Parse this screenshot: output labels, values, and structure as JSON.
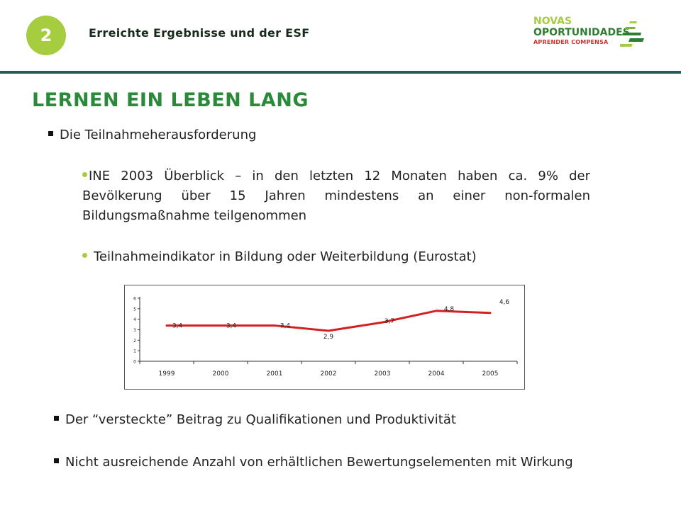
{
  "header": {
    "number": "2",
    "title": "Erreichte Ergebnisse und der ESF"
  },
  "logo": {
    "line1": "NOVAS",
    "line2": "OPORTUNIDADES",
    "line3": "APRENDER COMPENSA"
  },
  "main_title": "LERNEN EIN LEBEN LANG",
  "section1": {
    "heading": "Die Teilnahmeherausforderung",
    "paragraph": "INE 2003 Überblick – in den letzten 12 Monaten haben ca. 9% der Bevölkerung über 15 Jahren mindestens an einer non-formalen Bildungsmaßnahme teilgenommen",
    "bullet": "Teilnahmeindikator in Bildung oder Weiterbildung (Eurostat)"
  },
  "chart_data": {
    "type": "line",
    "categories": [
      "1999",
      "2000",
      "2001",
      "2002",
      "2003",
      "2004",
      "2005"
    ],
    "values": [
      3.4,
      3.4,
      3.4,
      2.9,
      3.7,
      4.8,
      4.6
    ],
    "labels": [
      "3,4",
      "3,4",
      "3,4",
      "2,9",
      "3,7",
      "4,8",
      "4,6"
    ],
    "y_ticks": [
      "0",
      "1",
      "2",
      "3",
      "4",
      "5",
      "6"
    ],
    "ylim": [
      0,
      6
    ],
    "grid": false,
    "legend": "none",
    "line_color": "#d42020"
  },
  "bottom": {
    "item1": "Der “versteckte” Beitrag zu Qualifikationen und Produktivität",
    "item2": "Nicht ausreichende Anzahl von erhältlichen Bewertungselementen mit Wirkung"
  }
}
